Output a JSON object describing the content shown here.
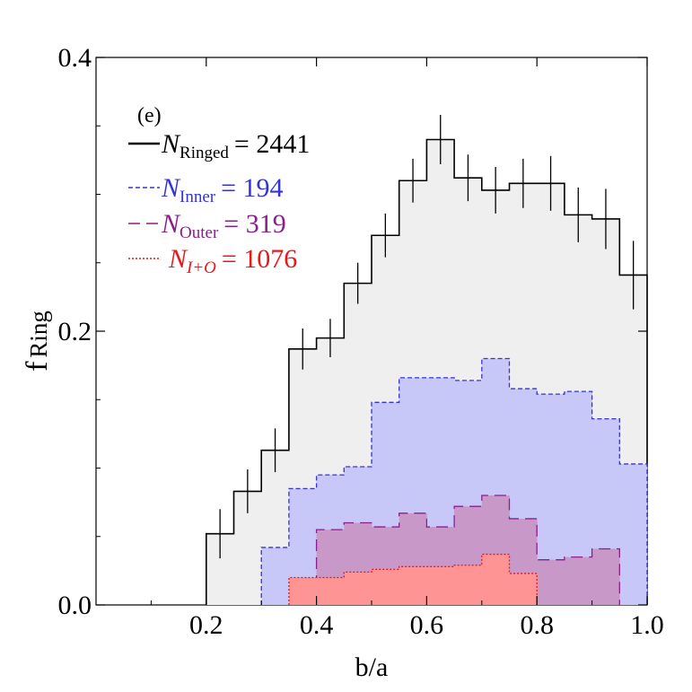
{
  "chart_data": {
    "type": "histogram",
    "panel_label": "(e)",
    "xlabel": "b/a",
    "ylabel_main": "f",
    "ylabel_sub": "Ring",
    "xlim": [
      0.0,
      1.0
    ],
    "ylim": [
      0.0,
      0.4
    ],
    "xticks": [
      "0.2",
      "0.4",
      "0.6",
      "0.8",
      "1.0"
    ],
    "xtick_values": [
      0.2,
      0.4,
      0.6,
      0.8,
      1.0
    ],
    "yticks": [
      "0.0",
      "0.2",
      "0.4"
    ],
    "ytick_values": [
      0.0,
      0.2,
      0.4
    ],
    "bin_width": 0.05,
    "series": [
      {
        "name": "Ringed",
        "symbol": "N",
        "subscript": "Ringed",
        "count_label": "= 2441",
        "color": "#000000",
        "fill": "#efefef",
        "line_style": "solid",
        "bin_starts": [
          0.2,
          0.25,
          0.3,
          0.35,
          0.4,
          0.45,
          0.5,
          0.55,
          0.6,
          0.65,
          0.7,
          0.75,
          0.8,
          0.85,
          0.9,
          0.95
        ],
        "values": [
          0.052,
          0.083,
          0.113,
          0.187,
          0.195,
          0.235,
          0.27,
          0.31,
          0.34,
          0.312,
          0.303,
          0.308,
          0.308,
          0.285,
          0.282,
          0.241
        ],
        "errors": [
          0.018,
          0.016,
          0.016,
          0.015,
          0.014,
          0.015,
          0.016,
          0.016,
          0.018,
          0.017,
          0.017,
          0.018,
          0.02,
          0.02,
          0.022,
          0.025
        ]
      },
      {
        "name": "Inner",
        "symbol": "N",
        "subscript": "Inner",
        "count_label": "=  194",
        "color": "#3333dd",
        "fill": "#c8c8f8",
        "line_style": "dashed",
        "bin_starts": [
          0.3,
          0.35,
          0.4,
          0.45,
          0.5,
          0.55,
          0.6,
          0.65,
          0.7,
          0.75,
          0.8,
          0.85,
          0.9,
          0.95
        ],
        "values": [
          0.042,
          0.085,
          0.095,
          0.101,
          0.148,
          0.166,
          0.166,
          0.164,
          0.18,
          0.158,
          0.154,
          0.156,
          0.136,
          0.103
        ]
      },
      {
        "name": "Outer",
        "symbol": "N",
        "subscript": "Outer",
        "count_label": "=  319",
        "color": "#8b1f8b",
        "fill": "#c898c8",
        "line_style": "longdash",
        "bin_starts": [
          0.4,
          0.45,
          0.5,
          0.55,
          0.6,
          0.65,
          0.7,
          0.75,
          0.8,
          0.85,
          0.9
        ],
        "values": [
          0.055,
          0.06,
          0.057,
          0.067,
          0.057,
          0.072,
          0.08,
          0.063,
          0.033,
          0.035,
          0.041
        ]
      },
      {
        "name": "I+O",
        "symbol": "N",
        "subscript": "I+O",
        "count_label": "= 1076",
        "color": "#e81818",
        "fill": "#ff9494",
        "line_style": "dotted",
        "bin_starts": [
          0.35,
          0.4,
          0.45,
          0.5,
          0.55,
          0.6,
          0.65,
          0.7,
          0.75
        ],
        "values": [
          0.02,
          0.02,
          0.024,
          0.026,
          0.028,
          0.028,
          0.029,
          0.037,
          0.023
        ]
      }
    ]
  }
}
